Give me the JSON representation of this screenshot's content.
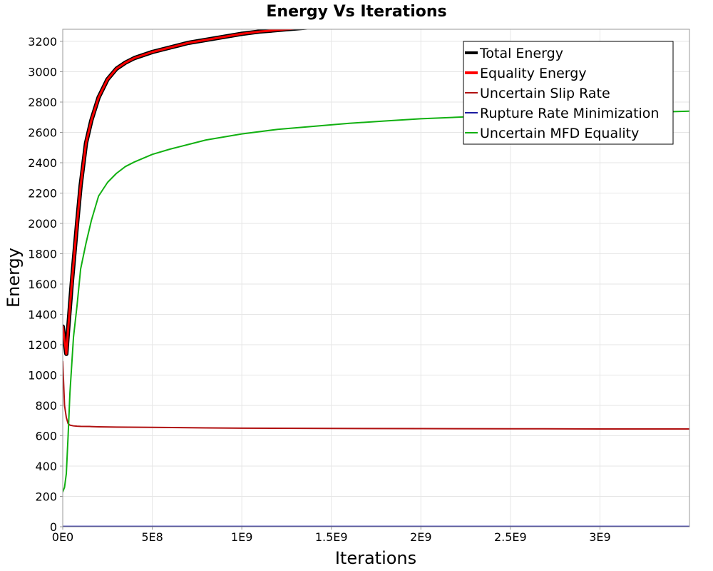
{
  "chart_data": {
    "type": "line",
    "title": "Energy Vs Iterations",
    "xlabel": "Iterations",
    "ylabel": "Energy",
    "xlim": [
      0,
      3500000000
    ],
    "ylim": [
      0,
      3280
    ],
    "grid": true,
    "legend_position": "top-right",
    "x_ticks": [
      {
        "value": 0,
        "label": "0E0"
      },
      {
        "value": 500000000,
        "label": "5E8"
      },
      {
        "value": 1000000000,
        "label": "1E9"
      },
      {
        "value": 1500000000,
        "label": "1.5E9"
      },
      {
        "value": 2000000000,
        "label": "2E9"
      },
      {
        "value": 2500000000,
        "label": "2.5E9"
      },
      {
        "value": 3000000000,
        "label": "3E9"
      }
    ],
    "y_ticks": [
      {
        "value": 0,
        "label": "0"
      },
      {
        "value": 200,
        "label": "200"
      },
      {
        "value": 400,
        "label": "400"
      },
      {
        "value": 600,
        "label": "600"
      },
      {
        "value": 800,
        "label": "800"
      },
      {
        "value": 1000,
        "label": "1000"
      },
      {
        "value": 1200,
        "label": "1200"
      },
      {
        "value": 1400,
        "label": "1400"
      },
      {
        "value": 1600,
        "label": "1600"
      },
      {
        "value": 1800,
        "label": "1800"
      },
      {
        "value": 2000,
        "label": "2000"
      },
      {
        "value": 2200,
        "label": "2200"
      },
      {
        "value": 2400,
        "label": "2400"
      },
      {
        "value": 2600,
        "label": "2600"
      },
      {
        "value": 2800,
        "label": "2800"
      },
      {
        "value": 3000,
        "label": "3000"
      },
      {
        "value": 3200,
        "label": "3200"
      }
    ],
    "series": [
      {
        "name": "Total Energy",
        "color": "#000000",
        "x": [
          0,
          10000000,
          20000000,
          30000000,
          50000000,
          80000000,
          100000000,
          130000000,
          160000000,
          200000000,
          250000000,
          300000000,
          350000000,
          400000000,
          500000000,
          600000000,
          700000000,
          800000000,
          900000000,
          1000000000,
          1100000000,
          1200000000,
          1300000000,
          1400000000
        ],
        "y": [
          1320,
          1230,
          1140,
          1300,
          1600,
          2000,
          2250,
          2530,
          2680,
          2830,
          2950,
          3020,
          3060,
          3090,
          3130,
          3160,
          3190,
          3210,
          3230,
          3250,
          3265,
          3275,
          3285,
          3295
        ]
      },
      {
        "name": "Equality Energy",
        "color": "#ff0000",
        "x": [
          0,
          10000000,
          20000000,
          30000000,
          50000000,
          80000000,
          100000000,
          130000000,
          160000000,
          200000000,
          250000000,
          300000000,
          350000000,
          400000000,
          500000000,
          600000000,
          700000000,
          800000000,
          900000000,
          1000000000,
          1100000000,
          1200000000,
          1300000000,
          1400000000
        ],
        "y": [
          1320,
          1230,
          1140,
          1300,
          1600,
          2000,
          2250,
          2530,
          2680,
          2830,
          2950,
          3020,
          3060,
          3090,
          3130,
          3160,
          3190,
          3210,
          3230,
          3250,
          3265,
          3275,
          3285,
          3295
        ]
      },
      {
        "name": "Uncertain Slip Rate",
        "color": "#b01010",
        "x": [
          0,
          10000000,
          20000000,
          30000000,
          40000000,
          60000000,
          80000000,
          100000000,
          150000000,
          200000000,
          300000000,
          500000000,
          800000000,
          1000000000,
          1500000000,
          2000000000,
          2500000000,
          3000000000,
          3500000000
        ],
        "y": [
          1090,
          800,
          720,
          680,
          670,
          665,
          663,
          662,
          661,
          659,
          657,
          655,
          652,
          650,
          648,
          647,
          646,
          645,
          645
        ]
      },
      {
        "name": "Rupture Rate Minimization",
        "color": "#1a1aa0",
        "x": [
          0,
          3500000000
        ],
        "y": [
          2,
          2
        ]
      },
      {
        "name": "Uncertain MFD Equality",
        "color": "#11b011",
        "x": [
          0,
          10000000,
          20000000,
          30000000,
          40000000,
          60000000,
          80000000,
          100000000,
          130000000,
          160000000,
          200000000,
          250000000,
          300000000,
          350000000,
          400000000,
          500000000,
          600000000,
          700000000,
          800000000,
          900000000,
          1000000000,
          1200000000,
          1400000000,
          1600000000,
          1800000000,
          2000000000,
          2200000000,
          2400000000,
          2600000000,
          2800000000,
          3000000000,
          3200000000,
          3500000000
        ],
        "y": [
          230,
          260,
          350,
          600,
          880,
          1250,
          1460,
          1700,
          1870,
          2020,
          2180,
          2270,
          2330,
          2375,
          2405,
          2455,
          2490,
          2520,
          2550,
          2570,
          2590,
          2620,
          2640,
          2660,
          2675,
          2690,
          2700,
          2710,
          2715,
          2720,
          2725,
          2730,
          2740
        ]
      }
    ]
  }
}
